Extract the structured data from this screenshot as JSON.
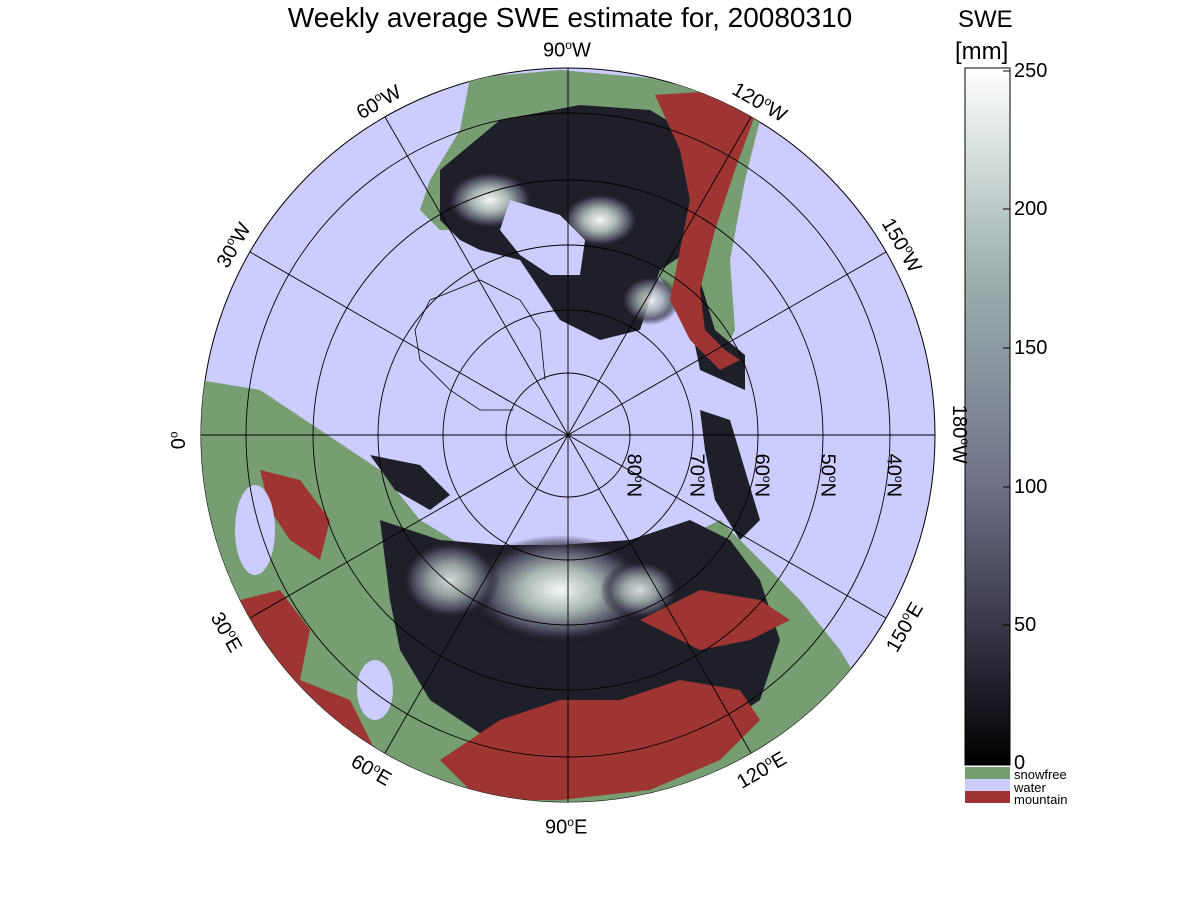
{
  "title": "Weekly average SWE estimate for, 20080310",
  "colorbar": {
    "title_line1": "SWE",
    "title_line2": "[mm]",
    "ticks": [
      "250",
      "200",
      "150",
      "100",
      "50",
      "0"
    ],
    "range": [
      0,
      250
    ],
    "gradient_top": "#ffffff",
    "gradient_mid": "#6f7088",
    "gradient_bottom": "#000000"
  },
  "legend": [
    {
      "label": "snowfree",
      "color": "#779d72"
    },
    {
      "label": "water",
      "color": "#ccccff"
    },
    {
      "label": "mountain",
      "color": "#9e3533"
    }
  ],
  "longitude_labels": {
    "deg_sym": "o",
    "items": [
      {
        "value": "90",
        "hemi": "W"
      },
      {
        "value": "120",
        "hemi": "W"
      },
      {
        "value": "60",
        "hemi": "W"
      },
      {
        "value": "150",
        "hemi": "W"
      },
      {
        "value": "30",
        "hemi": "W"
      },
      {
        "value": "180",
        "hemi": "W"
      },
      {
        "value": "0",
        "hemi": ""
      },
      {
        "value": "150",
        "hemi": "E"
      },
      {
        "value": "30",
        "hemi": "E"
      },
      {
        "value": "120",
        "hemi": "E"
      },
      {
        "value": "60",
        "hemi": "E"
      },
      {
        "value": "90",
        "hemi": "E"
      }
    ]
  },
  "latitude_labels": [
    {
      "value": "80",
      "hemi": "N"
    },
    {
      "value": "70",
      "hemi": "N"
    },
    {
      "value": "60",
      "hemi": "N"
    },
    {
      "value": "50",
      "hemi": "N"
    },
    {
      "value": "40",
      "hemi": "N"
    }
  ]
}
